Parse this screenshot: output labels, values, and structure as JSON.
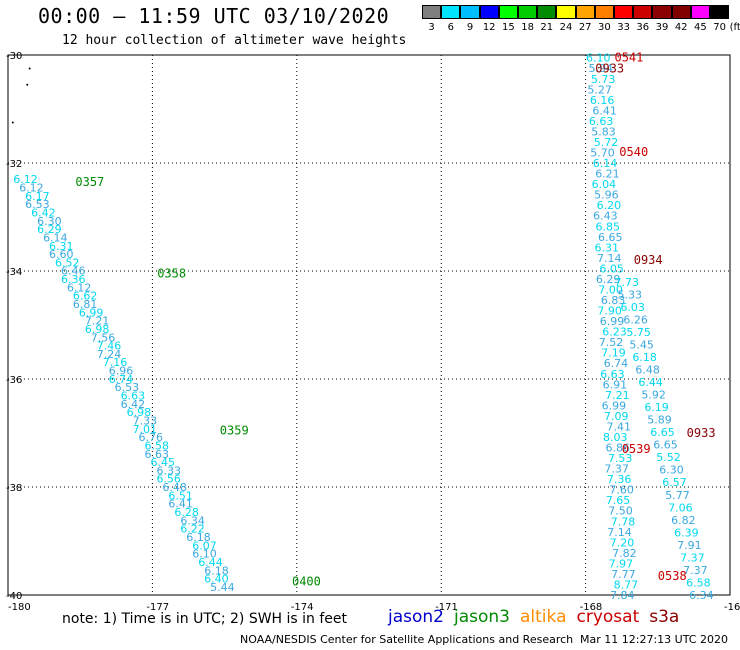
{
  "header": {
    "title": "00:00 — 11:59 UTC 03/10/2020",
    "subtitle": "12 hour collection of altimeter wave heights"
  },
  "colorbar": {
    "labels": [
      "3",
      "6",
      "9",
      "12",
      "15",
      "18",
      "21",
      "24",
      "27",
      "30",
      "33",
      "36",
      "39",
      "42",
      "45",
      "70",
      "(ft)"
    ],
    "colors": [
      "#7f7f7f",
      "#00e5ff",
      "#00bfff",
      "#0000ff",
      "#00ff00",
      "#00cd00",
      "#008b00",
      "#ffff00",
      "#ffa500",
      "#ff7f00",
      "#ff0000",
      "#cd0000",
      "#8b0000",
      "#800000",
      "#ff00ff",
      "#000000"
    ]
  },
  "footer": {
    "note": "note: 1) Time is in UTC; 2) SWH is in feet",
    "legend": [
      {
        "name": "jason2",
        "color": "#0000cc"
      },
      {
        "name": "jason3",
        "color": "#008b00"
      },
      {
        "name": "altika",
        "color": "#ff8c00"
      },
      {
        "name": "cryosat",
        "color": "#cc0000"
      },
      {
        "name": "s3a",
        "color": "#8b0000"
      }
    ],
    "credit": "NOAA/NESDIS Center for Satellite Applications and Research",
    "timestamp": "Mar 11 12:27:13 UTC 2020"
  },
  "chart_data": {
    "type": "scatter",
    "xlim": [
      -180,
      -165
    ],
    "ylim": [
      -40,
      -30
    ],
    "x_ticks": [
      "-180",
      "-177",
      "-174",
      "-171",
      "-168",
      "-165"
    ],
    "y_ticks": [
      "-30",
      "-32",
      "-34",
      "-36",
      "-38",
      "-40"
    ],
    "grid": true,
    "track_colors": {
      "light": "#00d8f0",
      "mid": "#3aa8e0"
    },
    "time_labels": [
      {
        "text": "0357",
        "lon": -178.6,
        "lat": -32.35,
        "color": "#008b00"
      },
      {
        "text": "0358",
        "lon": -176.9,
        "lat": -34.05,
        "color": "#008b00"
      },
      {
        "text": "0359",
        "lon": -175.6,
        "lat": -36.95,
        "color": "#008b00"
      },
      {
        "text": "0400",
        "lon": -174.1,
        "lat": -39.75,
        "color": "#008b00"
      },
      {
        "text": "0541",
        "lon": -167.4,
        "lat": -30.05,
        "color": "#cc0000"
      },
      {
        "text": "0933",
        "lon": -167.8,
        "lat": -30.25,
        "color": "#8b0000"
      },
      {
        "text": "0540",
        "lon": -167.3,
        "lat": -31.8,
        "color": "#cc0000"
      },
      {
        "text": "0934",
        "lon": -167.0,
        "lat": -33.8,
        "color": "#8b0000"
      },
      {
        "text": "0539",
        "lon": -167.25,
        "lat": -37.3,
        "color": "#cc0000"
      },
      {
        "text": "0933",
        "lon": -165.9,
        "lat": -37.0,
        "color": "#8b0000"
      },
      {
        "text": "0538",
        "lon": -166.5,
        "lat": -39.65,
        "color": "#cc0000"
      }
    ],
    "jason3_track": {
      "start": [
        -179.85,
        -32.3
      ],
      "end": [
        -175.8,
        -39.85
      ],
      "values": [
        "6.12",
        "6.12",
        "6.17",
        "6.53",
        "6.42",
        "6.30",
        "6.29",
        "6.14",
        "6.31",
        "6.60",
        "6.52",
        "6.46",
        "6.36",
        "6.12",
        "6.62",
        "6.81",
        "6.99",
        "7.21",
        "6.98",
        "7.56",
        "7.46",
        "7.24",
        "7.16",
        "6.96",
        "6.74",
        "6.53",
        "6.63",
        "6.42",
        "6.98",
        "7.33",
        "7.01",
        "6.76",
        "6.58",
        "6.63",
        "6.45",
        "6.33",
        "6.56",
        "6.48",
        "6.51",
        "6.41",
        "6.28",
        "6.34",
        "6.22",
        "6.18",
        "6.07",
        "6.10",
        "6.44",
        "6.18",
        "6.40",
        "5.44"
      ]
    },
    "cryosat_track": {
      "start": [
        -167.95,
        -30.05
      ],
      "end": [
        -167.45,
        -40.0
      ],
      "values": [
        "6.10",
        "5.94",
        "5.73",
        "5.27",
        "6.16",
        "6.41",
        "6.63",
        "5.83",
        "5.72",
        "5.70",
        "6.14",
        "6.21",
        "6.04",
        "5.96",
        "6.20",
        "6.43",
        "6.85",
        "6.65",
        "6.31",
        "7.14",
        "6.05",
        "6.29",
        "7.00",
        "6.83",
        "7.90",
        "6.99",
        "6.23",
        "7.52",
        "7.19",
        "6.74",
        "6.63",
        "6.91",
        "7.21",
        "6.99",
        "7.09",
        "7.41",
        "8.03",
        "6.86",
        "7.53",
        "7.37",
        "7.36",
        "7.60",
        "7.65",
        "7.50",
        "7.78",
        "7.14",
        "7.20",
        "7.82",
        "7.97",
        "7.77",
        "8.77",
        "7.84"
      ]
    },
    "s3a_track": {
      "start": [
        -167.4,
        -34.2
      ],
      "end": [
        -165.85,
        -40.0
      ],
      "values": [
        "7.73",
        "5.33",
        "6.03",
        "6.26",
        "5.75",
        "5.45",
        "6.18",
        "6.48",
        "6.44",
        "5.92",
        "6.19",
        "5.89",
        "6.65",
        "6.65",
        "5.52",
        "6.30",
        "6.57",
        "5.77",
        "7.06",
        "6.82",
        "6.39",
        "7.91",
        "7.37",
        "7.37",
        "6.58",
        "6.34"
      ]
    },
    "scatter_dots": [
      {
        "lon": -179.55,
        "lat": -30.25
      },
      {
        "lon": -179.6,
        "lat": -30.55
      },
      {
        "lon": -179.9,
        "lat": -31.25
      }
    ]
  }
}
